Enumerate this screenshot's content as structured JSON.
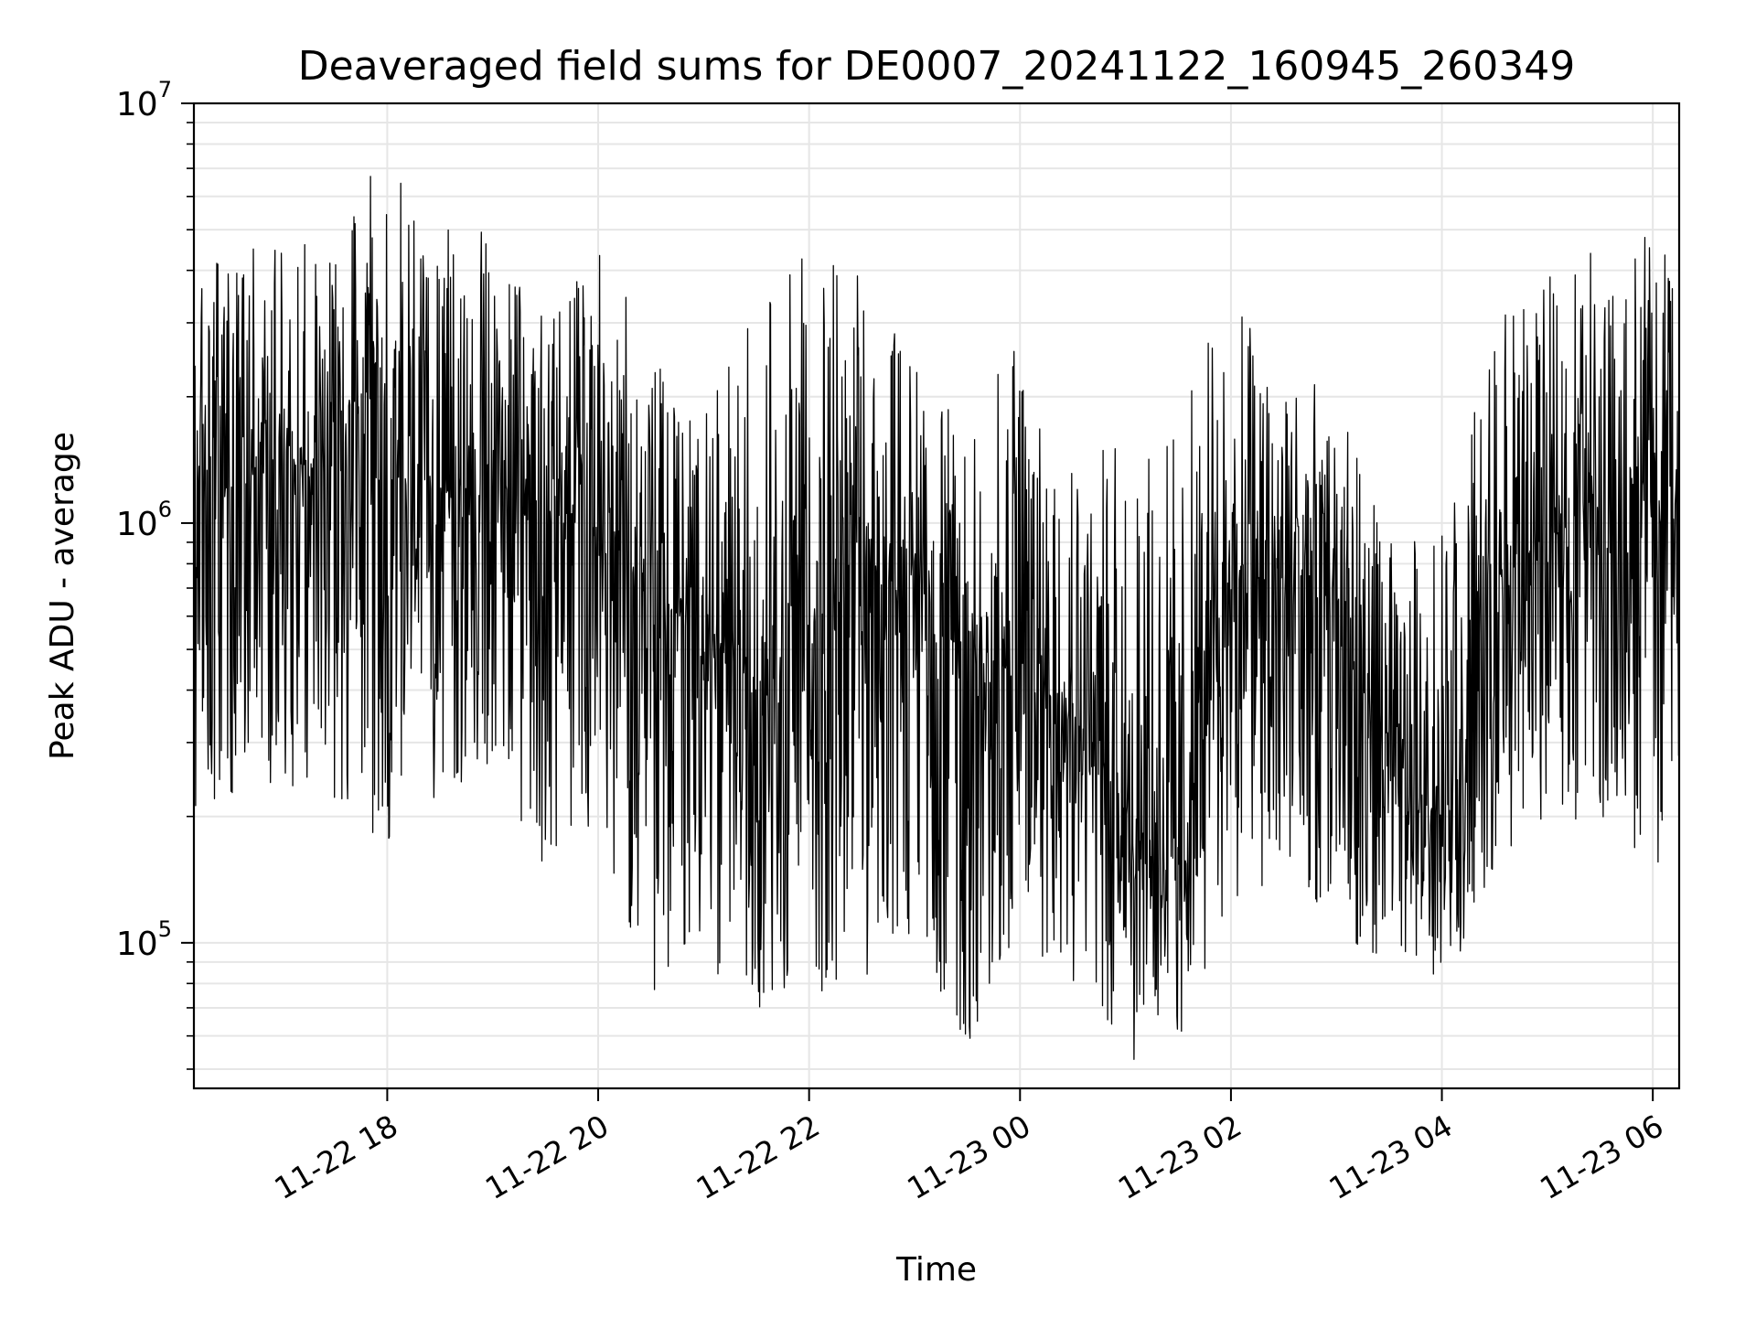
{
  "chart_data": {
    "type": "line",
    "title": "Deaveraged field sums for DE0007_20241122_160945_260349",
    "xlabel": "Time",
    "ylabel": "Peak ADU - average",
    "x_scale": "time",
    "y_scale": "log",
    "xlim": [
      "2024-11-22 16:10",
      "2024-11-23 06:15"
    ],
    "ylim": [
      45000,
      10000000
    ],
    "x_ticks": [
      {
        "value": "2024-11-22 18:00",
        "label": "11-22 18"
      },
      {
        "value": "2024-11-22 20:00",
        "label": "11-22 20"
      },
      {
        "value": "2024-11-22 22:00",
        "label": "11-22 22"
      },
      {
        "value": "2024-11-23 00:00",
        "label": "11-23 00"
      },
      {
        "value": "2024-11-23 02:00",
        "label": "11-23 02"
      },
      {
        "value": "2024-11-23 04:00",
        "label": "11-23 04"
      },
      {
        "value": "2024-11-23 06:00",
        "label": "11-23 06"
      }
    ],
    "y_ticks": [
      {
        "value": 100000,
        "base": "10",
        "exp": "5"
      },
      {
        "value": 1000000,
        "base": "10",
        "exp": "6"
      },
      {
        "value": 10000000,
        "base": "10",
        "exp": "7"
      }
    ],
    "grid": true,
    "line_color": "#000000",
    "grid_color": "#e6e6e6",
    "series": [
      {
        "x": [
          "2024-11-22 16:10",
          "2024-11-22 16:30",
          "2024-11-22 17:00",
          "2024-11-22 17:30",
          "2024-11-22 18:00",
          "2024-11-22 18:30",
          "2024-11-22 19:00",
          "2024-11-22 19:30",
          "2024-11-22 20:00",
          "2024-11-22 20:30",
          "2024-11-22 21:00",
          "2024-11-22 21:30",
          "2024-11-22 22:00",
          "2024-11-22 22:30",
          "2024-11-22 23:00",
          "2024-11-22 23:30",
          "2024-11-23 00:00",
          "2024-11-23 00:30",
          "2024-11-23 01:00",
          "2024-11-23 01:30",
          "2024-11-23 02:00",
          "2024-11-23 02:30",
          "2024-11-23 03:00",
          "2024-11-23 03:30",
          "2024-11-23 04:00",
          "2024-11-23 04:30",
          "2024-11-23 05:00",
          "2024-11-23 05:30",
          "2024-11-23 06:00",
          "2024-11-23 06:15"
        ],
        "y_center": [
          1600000,
          1500000,
          1400000,
          1300000,
          1250000,
          1200000,
          1250000,
          1100000,
          900000,
          700000,
          500000,
          400000,
          550000,
          700000,
          750000,
          450000,
          450000,
          380000,
          200000,
          150000,
          700000,
          750000,
          600000,
          250000,
          200000,
          600000,
          900000,
          1200000,
          1300000,
          1200000
        ],
        "y_min": [
          200000,
          220000,
          230000,
          200000,
          170000,
          220000,
          250000,
          150000,
          200000,
          70000,
          90000,
          70000,
          70000,
          80000,
          100000,
          55000,
          100000,
          80000,
          50000,
          55000,
          120000,
          150000,
          100000,
          85000,
          75000,
          150000,
          200000,
          190000,
          150000,
          130000
        ],
        "y_max": [
          3500000,
          5000000,
          4500000,
          5000000,
          7800000,
          5000000,
          5000000,
          3000000,
          5000000,
          2500000,
          1800000,
          3500000,
          4500000,
          4000000,
          2500000,
          1600000,
          3000000,
          1800000,
          1500000,
          1800000,
          3800000,
          2500000,
          2000000,
          900000,
          1000000,
          3000000,
          3800000,
          5300000,
          5000000,
          4700000
        ]
      }
    ]
  }
}
